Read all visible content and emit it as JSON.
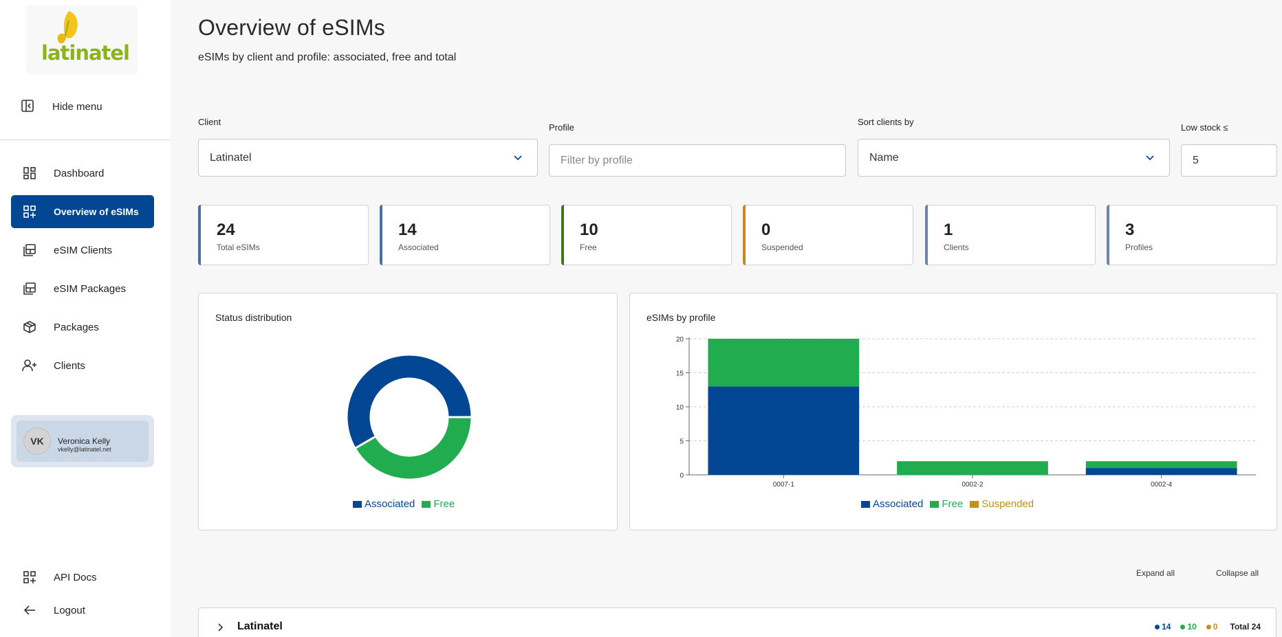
{
  "brand": {
    "name": "latinatel",
    "color_green": "#8db31c",
    "color_yellow": "#f3c51c"
  },
  "sidebar": {
    "hide_menu": "Hide menu",
    "items": [
      {
        "label": "Dashboard",
        "icon": "dashboard-icon"
      },
      {
        "label": "Overview of eSIMs",
        "icon": "grid-plus-icon",
        "active": true
      },
      {
        "label": "eSIM Clients",
        "icon": "sim-stack-icon"
      },
      {
        "label": "eSIM Packages",
        "icon": "sim-stack-icon"
      },
      {
        "label": "Packages",
        "icon": "package-box-icon"
      },
      {
        "label": "Clients",
        "icon": "user-plus-icon"
      }
    ],
    "user": {
      "initials": "VK",
      "name": "Veronica Kelly",
      "email": "vkelly@latinatel.net"
    },
    "api_docs": "API Docs",
    "logout": "Logout"
  },
  "header": {
    "title": "Overview of eSIMs",
    "subtitle": "eSIMs by client and profile: associated, free and total"
  },
  "filters": {
    "client": {
      "label": "Client",
      "value": "Latinatel"
    },
    "profile": {
      "label": "Profile",
      "placeholder": "Filter by profile"
    },
    "sort": {
      "label": "Sort clients by",
      "value": "Name"
    },
    "low_stock": {
      "label": "Low stock ≤",
      "value": "5"
    }
  },
  "stats": [
    {
      "value": "24",
      "label": "Total eSIMs",
      "color": "#4a6fa5"
    },
    {
      "value": "14",
      "label": "Associated",
      "color": "#4a6fa5"
    },
    {
      "value": "10",
      "label": "Free",
      "color": "#3a7a1a"
    },
    {
      "value": "0",
      "label": "Suspended",
      "color": "#c08a1e"
    },
    {
      "value": "1",
      "label": "Clients",
      "color": "#6a86aa"
    },
    {
      "value": "3",
      "label": "Profiles",
      "color": "#6a86aa"
    }
  ],
  "colors": {
    "associated": "#034694",
    "free": "#21ad4f",
    "suspended": "#c58f1a"
  },
  "status_panel": {
    "title": "Status distribution",
    "legend": [
      "Associated",
      "Free"
    ]
  },
  "profile_panel": {
    "title": "eSIMs by profile",
    "legend": [
      "Associated",
      "Free",
      "Suspended"
    ]
  },
  "chart_data": [
    {
      "type": "pie",
      "title": "Status distribution",
      "labels": [
        "Associated",
        "Free"
      ],
      "values": [
        14,
        10
      ],
      "donut": true,
      "legend": "bottom"
    },
    {
      "type": "bar",
      "stacked": true,
      "title": "eSIMs by profile",
      "categories": [
        "0007-1",
        "0002-2",
        "0002-4"
      ],
      "series": [
        {
          "name": "Associated",
          "values": [
            13,
            0,
            1
          ]
        },
        {
          "name": "Free",
          "values": [
            7,
            2,
            1
          ]
        },
        {
          "name": "Suspended",
          "values": [
            0,
            0,
            0
          ]
        }
      ],
      "ylim": [
        0,
        20
      ],
      "yticks": [
        "0",
        "5",
        "10",
        "15",
        "20"
      ],
      "grid": true,
      "legend": "bottom"
    }
  ],
  "actions": {
    "expand_all": "Expand all",
    "collapse_all": "Collapse all"
  },
  "client_row": {
    "name": "Latinatel",
    "associated": "14",
    "free": "10",
    "suspended": "0",
    "total": "Total 24"
  }
}
